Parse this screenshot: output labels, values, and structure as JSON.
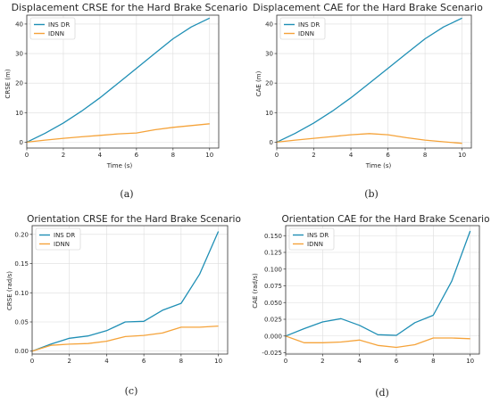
{
  "colors": {
    "series1": "#1f8fb5",
    "series2": "#f5a33a",
    "grid": "#dddddd",
    "frame": "#333333"
  },
  "chart_data": [
    {
      "type": "line",
      "panel_label": "(a)",
      "title": "Displacement CRSE for the Hard Brake Scenario",
      "xlabel": "Time (s)",
      "ylabel": "CRSE (m)",
      "xlim": [
        0,
        10.5
      ],
      "ylim": [
        -2,
        43
      ],
      "xticks": [
        0,
        2,
        4,
        6,
        8,
        10
      ],
      "yticks": [
        0,
        10,
        20,
        30,
        40
      ],
      "grid": true,
      "legend_position": "top-left",
      "x": [
        0,
        1,
        2,
        3,
        4,
        5,
        6,
        7,
        8,
        9,
        10
      ],
      "series": [
        {
          "name": "INS DR",
          "values": [
            0,
            3,
            6.5,
            10.5,
            15,
            20,
            25,
            30,
            35,
            39,
            42
          ]
        },
        {
          "name": "IDNN",
          "values": [
            0,
            0.7,
            1.3,
            1.8,
            2.3,
            2.8,
            3.1,
            4.2,
            5.0,
            5.6,
            6.2
          ]
        }
      ]
    },
    {
      "type": "line",
      "panel_label": "(b)",
      "title": "Displacement CAE for the Hard Brake Scenario",
      "xlabel": "Time (s)",
      "ylabel": "CAE (m)",
      "xlim": [
        0,
        10.5
      ],
      "ylim": [
        -2,
        43
      ],
      "xticks": [
        0,
        2,
        4,
        6,
        8,
        10
      ],
      "yticks": [
        0,
        10,
        20,
        30,
        40
      ],
      "grid": true,
      "legend_position": "top-left",
      "x": [
        0,
        1,
        2,
        3,
        4,
        5,
        6,
        7,
        8,
        9,
        10
      ],
      "series": [
        {
          "name": "INS DR",
          "values": [
            0,
            3,
            6.5,
            10.5,
            15,
            20,
            25,
            30,
            35,
            39,
            42
          ]
        },
        {
          "name": "IDNN",
          "values": [
            0,
            0.7,
            1.3,
            1.9,
            2.5,
            2.9,
            2.5,
            1.5,
            0.7,
            0.1,
            -0.4
          ]
        }
      ]
    },
    {
      "type": "line",
      "panel_label": "(c)",
      "title": "Orientation CRSE for the Hard Brake Scenario",
      "xlabel": "Time (s)",
      "ylabel": "CRSE (rad/s)",
      "xlim": [
        0,
        10.5
      ],
      "ylim": [
        -0.005,
        0.215
      ],
      "xticks": [
        0,
        2,
        4,
        6,
        8,
        10
      ],
      "yticks": [
        0.0,
        0.05,
        0.1,
        0.15,
        0.2
      ],
      "ytick_labels": [
        "0.00",
        "0.05",
        "0.10",
        "0.15",
        "0.20"
      ],
      "grid": true,
      "legend_position": "top-left",
      "x": [
        0,
        1,
        2,
        3,
        4,
        5,
        6,
        7,
        8,
        9,
        10
      ],
      "series": [
        {
          "name": "INS DR",
          "values": [
            0,
            0.012,
            0.022,
            0.026,
            0.035,
            0.05,
            0.051,
            0.07,
            0.082,
            0.132,
            0.205
          ]
        },
        {
          "name": "IDNN",
          "values": [
            0,
            0.01,
            0.012,
            0.013,
            0.017,
            0.025,
            0.027,
            0.031,
            0.041,
            0.041,
            0.043
          ]
        }
      ]
    },
    {
      "type": "line",
      "panel_label": "(d)",
      "title": "Orientation CAE for the Hard Brake Scenario",
      "xlabel": "Time (s)",
      "ylabel": "CAE (rad/s)",
      "xlim": [
        0,
        10.5
      ],
      "ylim": [
        -0.027,
        0.165
      ],
      "xticks": [
        0,
        2,
        4,
        6,
        8,
        10
      ],
      "yticks": [
        -0.025,
        0.0,
        0.025,
        0.05,
        0.075,
        0.1,
        0.125,
        0.15
      ],
      "ytick_labels": [
        "-0.025",
        "0.000",
        "0.025",
        "0.050",
        "0.075",
        "0.100",
        "0.125",
        "0.150"
      ],
      "grid": true,
      "legend_position": "top-left",
      "x": [
        0,
        1,
        2,
        3,
        4,
        5,
        6,
        7,
        8,
        9,
        10
      ],
      "series": [
        {
          "name": "INS DR",
          "values": [
            0,
            0.011,
            0.021,
            0.026,
            0.016,
            0.002,
            0.001,
            0.02,
            0.031,
            0.082,
            0.157
          ]
        },
        {
          "name": "IDNN",
          "values": [
            0,
            -0.01,
            -0.01,
            -0.009,
            -0.006,
            -0.014,
            -0.017,
            -0.013,
            -0.003,
            -0.003,
            -0.004
          ]
        }
      ]
    }
  ]
}
